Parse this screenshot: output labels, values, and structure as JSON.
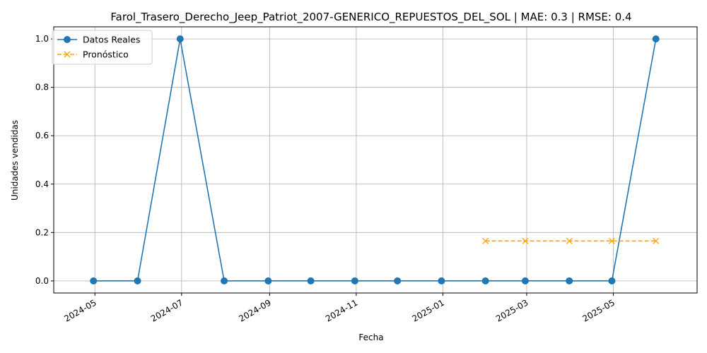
{
  "chart_data": {
    "type": "line",
    "title": "Farol_Trasero_Derecho_Jeep_Patriot_2007-GENERICO_REPUESTOS_DEL_SOL | MAE: 0.3 | RMSE: 0.4",
    "xlabel": "Fecha",
    "ylabel": "Unidades vendidas",
    "xlim": [
      "2024-04-02",
      "2025-06-29"
    ],
    "ylim": [
      -0.05,
      1.05
    ],
    "x_ticks": [
      "2024-05",
      "2024-07",
      "2024-09",
      "2024-11",
      "2025-01",
      "2025-03",
      "2025-05"
    ],
    "y_ticks": [
      "0.0",
      "0.2",
      "0.4",
      "0.6",
      "0.8",
      "1.0"
    ],
    "grid": true,
    "legend_position": "top-left",
    "series": [
      {
        "name": "Datos Reales",
        "color": "#1f77b4",
        "marker": "circle",
        "linestyle": "solid",
        "points": [
          {
            "x": "2024-04-30",
            "y": 0
          },
          {
            "x": "2024-05-31",
            "y": 0
          },
          {
            "x": "2024-06-30",
            "y": 1
          },
          {
            "x": "2024-07-31",
            "y": 0
          },
          {
            "x": "2024-08-31",
            "y": 0
          },
          {
            "x": "2024-09-30",
            "y": 0
          },
          {
            "x": "2024-10-31",
            "y": 0
          },
          {
            "x": "2024-11-30",
            "y": 0
          },
          {
            "x": "2024-12-31",
            "y": 0
          },
          {
            "x": "2025-01-31",
            "y": 0
          },
          {
            "x": "2025-02-28",
            "y": 0
          },
          {
            "x": "2025-03-31",
            "y": 0
          },
          {
            "x": "2025-04-30",
            "y": 0
          },
          {
            "x": "2025-05-31",
            "y": 1
          }
        ]
      },
      {
        "name": "Pronóstico",
        "color": "#ffa500",
        "marker": "x",
        "linestyle": "dashed",
        "points": [
          {
            "x": "2025-01-31",
            "y": 0.165
          },
          {
            "x": "2025-02-28",
            "y": 0.165
          },
          {
            "x": "2025-03-31",
            "y": 0.165
          },
          {
            "x": "2025-04-30",
            "y": 0.165
          },
          {
            "x": "2025-05-31",
            "y": 0.165
          }
        ]
      }
    ]
  }
}
